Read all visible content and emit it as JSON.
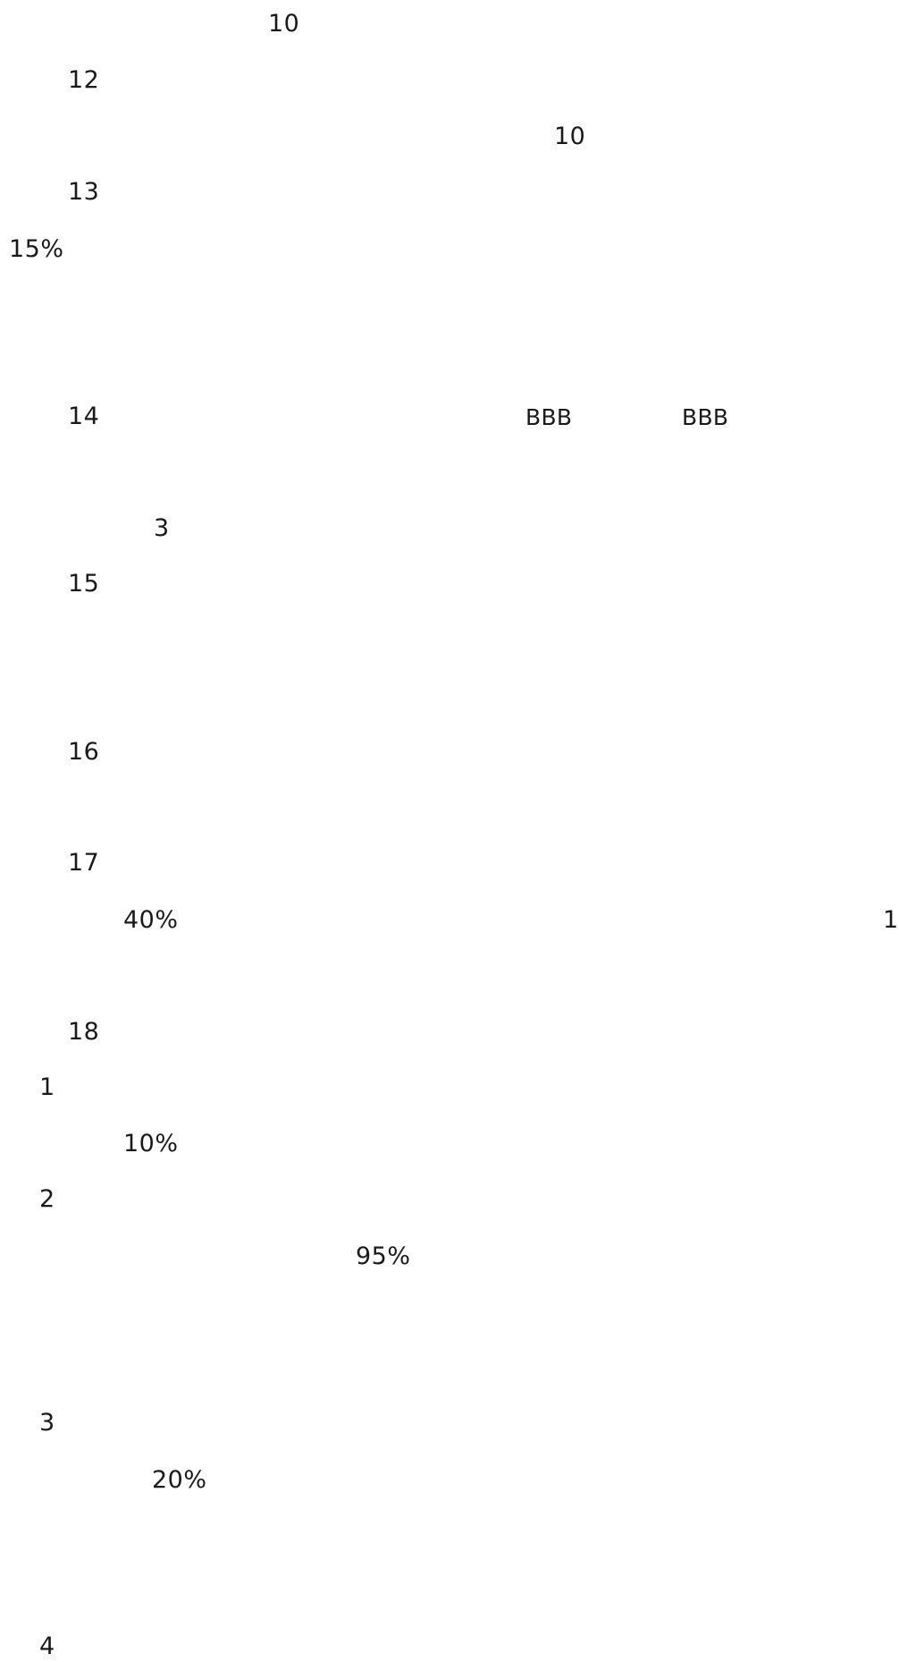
{
  "fragments": {
    "f01": "10",
    "f02": "12",
    "f03": "10",
    "f04": "13",
    "f05": "15%",
    "f06": "14",
    "f07": "BBB",
    "f08": "BBB",
    "f09": "3",
    "f10": "15",
    "f11": "16",
    "f12": "17",
    "f13": "40%",
    "f14": "1",
    "f15": "18",
    "f16": "1",
    "f17": "10%",
    "f18": "2",
    "f19": "95%",
    "f20": "3",
    "f21": "20%",
    "f22": "4"
  }
}
